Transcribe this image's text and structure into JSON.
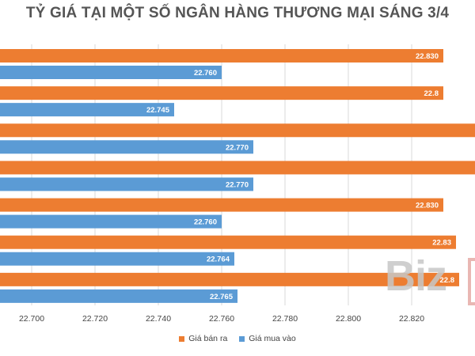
{
  "chart_data": {
    "type": "bar",
    "orientation": "horizontal",
    "title": "TỶ GIÁ TẠI MỘT SỐ NGÂN HÀNG THƯƠNG MẠI SÁNG 3/4",
    "xlim": [
      22690,
      22840
    ],
    "x_ticks": [
      "22.700",
      "22.720",
      "22.740",
      "22.760",
      "22.780",
      "22.800",
      "22.820"
    ],
    "x_tick_values": [
      22700,
      22720,
      22740,
      22760,
      22780,
      22800,
      22820
    ],
    "grid": true,
    "legend_position": "bottom",
    "series": [
      {
        "name": "Giá bán ra",
        "color": "#ed7d31",
        "values": [
          22830,
          22830,
          22840,
          22840,
          22830,
          22834,
          22835
        ],
        "labels": [
          "22.830",
          "22.8",
          "",
          "",
          "22.830",
          "22.83",
          "22.8"
        ]
      },
      {
        "name": "Giá mua vào",
        "color": "#5b9bd5",
        "values": [
          22760,
          22745,
          22770,
          22770,
          22760,
          22764,
          22765
        ],
        "labels": [
          "22.760",
          "22.745",
          "22.770",
          "22.770",
          "22.760",
          "22.764",
          "22.765"
        ]
      }
    ]
  },
  "watermark": {
    "text": "Biz"
  }
}
